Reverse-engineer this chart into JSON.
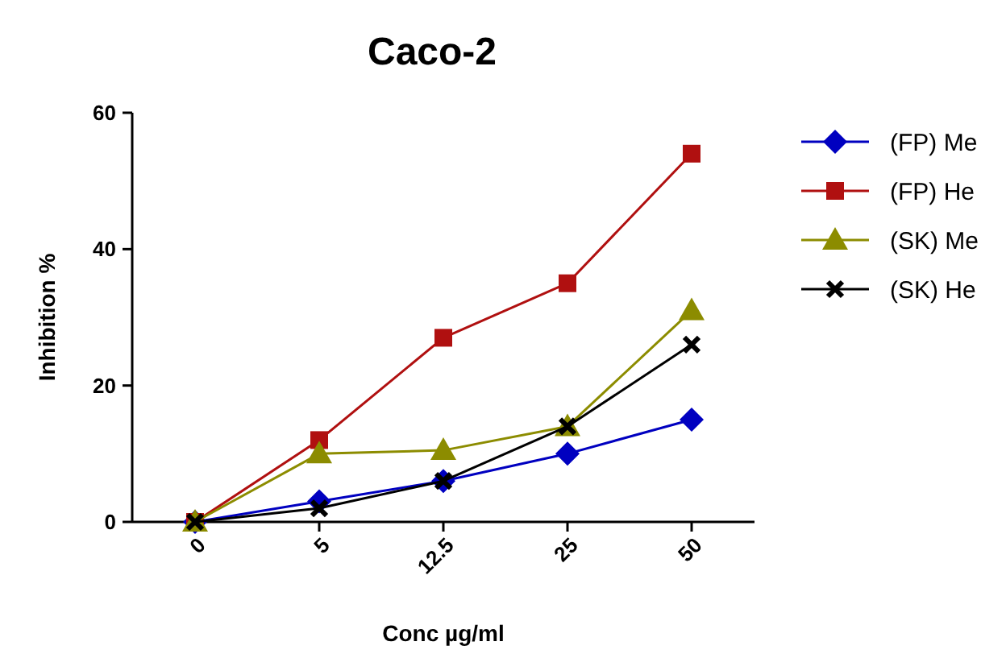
{
  "chart_data": {
    "type": "line",
    "title": "Caco-2",
    "xlabel": "Conc µg/ml",
    "ylabel": "Inhibition %",
    "categories": [
      "0",
      "5",
      "12.5",
      "25",
      "50"
    ],
    "ylim": [
      0,
      60
    ],
    "yticks": [
      0,
      20,
      40,
      60
    ],
    "grid": false,
    "legend": "right",
    "series": [
      {
        "name": "(FP) Me",
        "color": "#0000c0",
        "marker": "diamond",
        "values": [
          0,
          3,
          6,
          10,
          15
        ]
      },
      {
        "name": "(FP) He",
        "color": "#b01010",
        "marker": "square",
        "values": [
          0,
          12,
          27,
          35,
          54
        ]
      },
      {
        "name": "(SK) Me",
        "color": "#8c8c00",
        "marker": "triangle",
        "values": [
          0,
          10,
          10.5,
          14,
          31
        ]
      },
      {
        "name": "(SK) He",
        "color": "#000000",
        "marker": "cross",
        "values": [
          0,
          2,
          6,
          14,
          26
        ]
      }
    ]
  }
}
